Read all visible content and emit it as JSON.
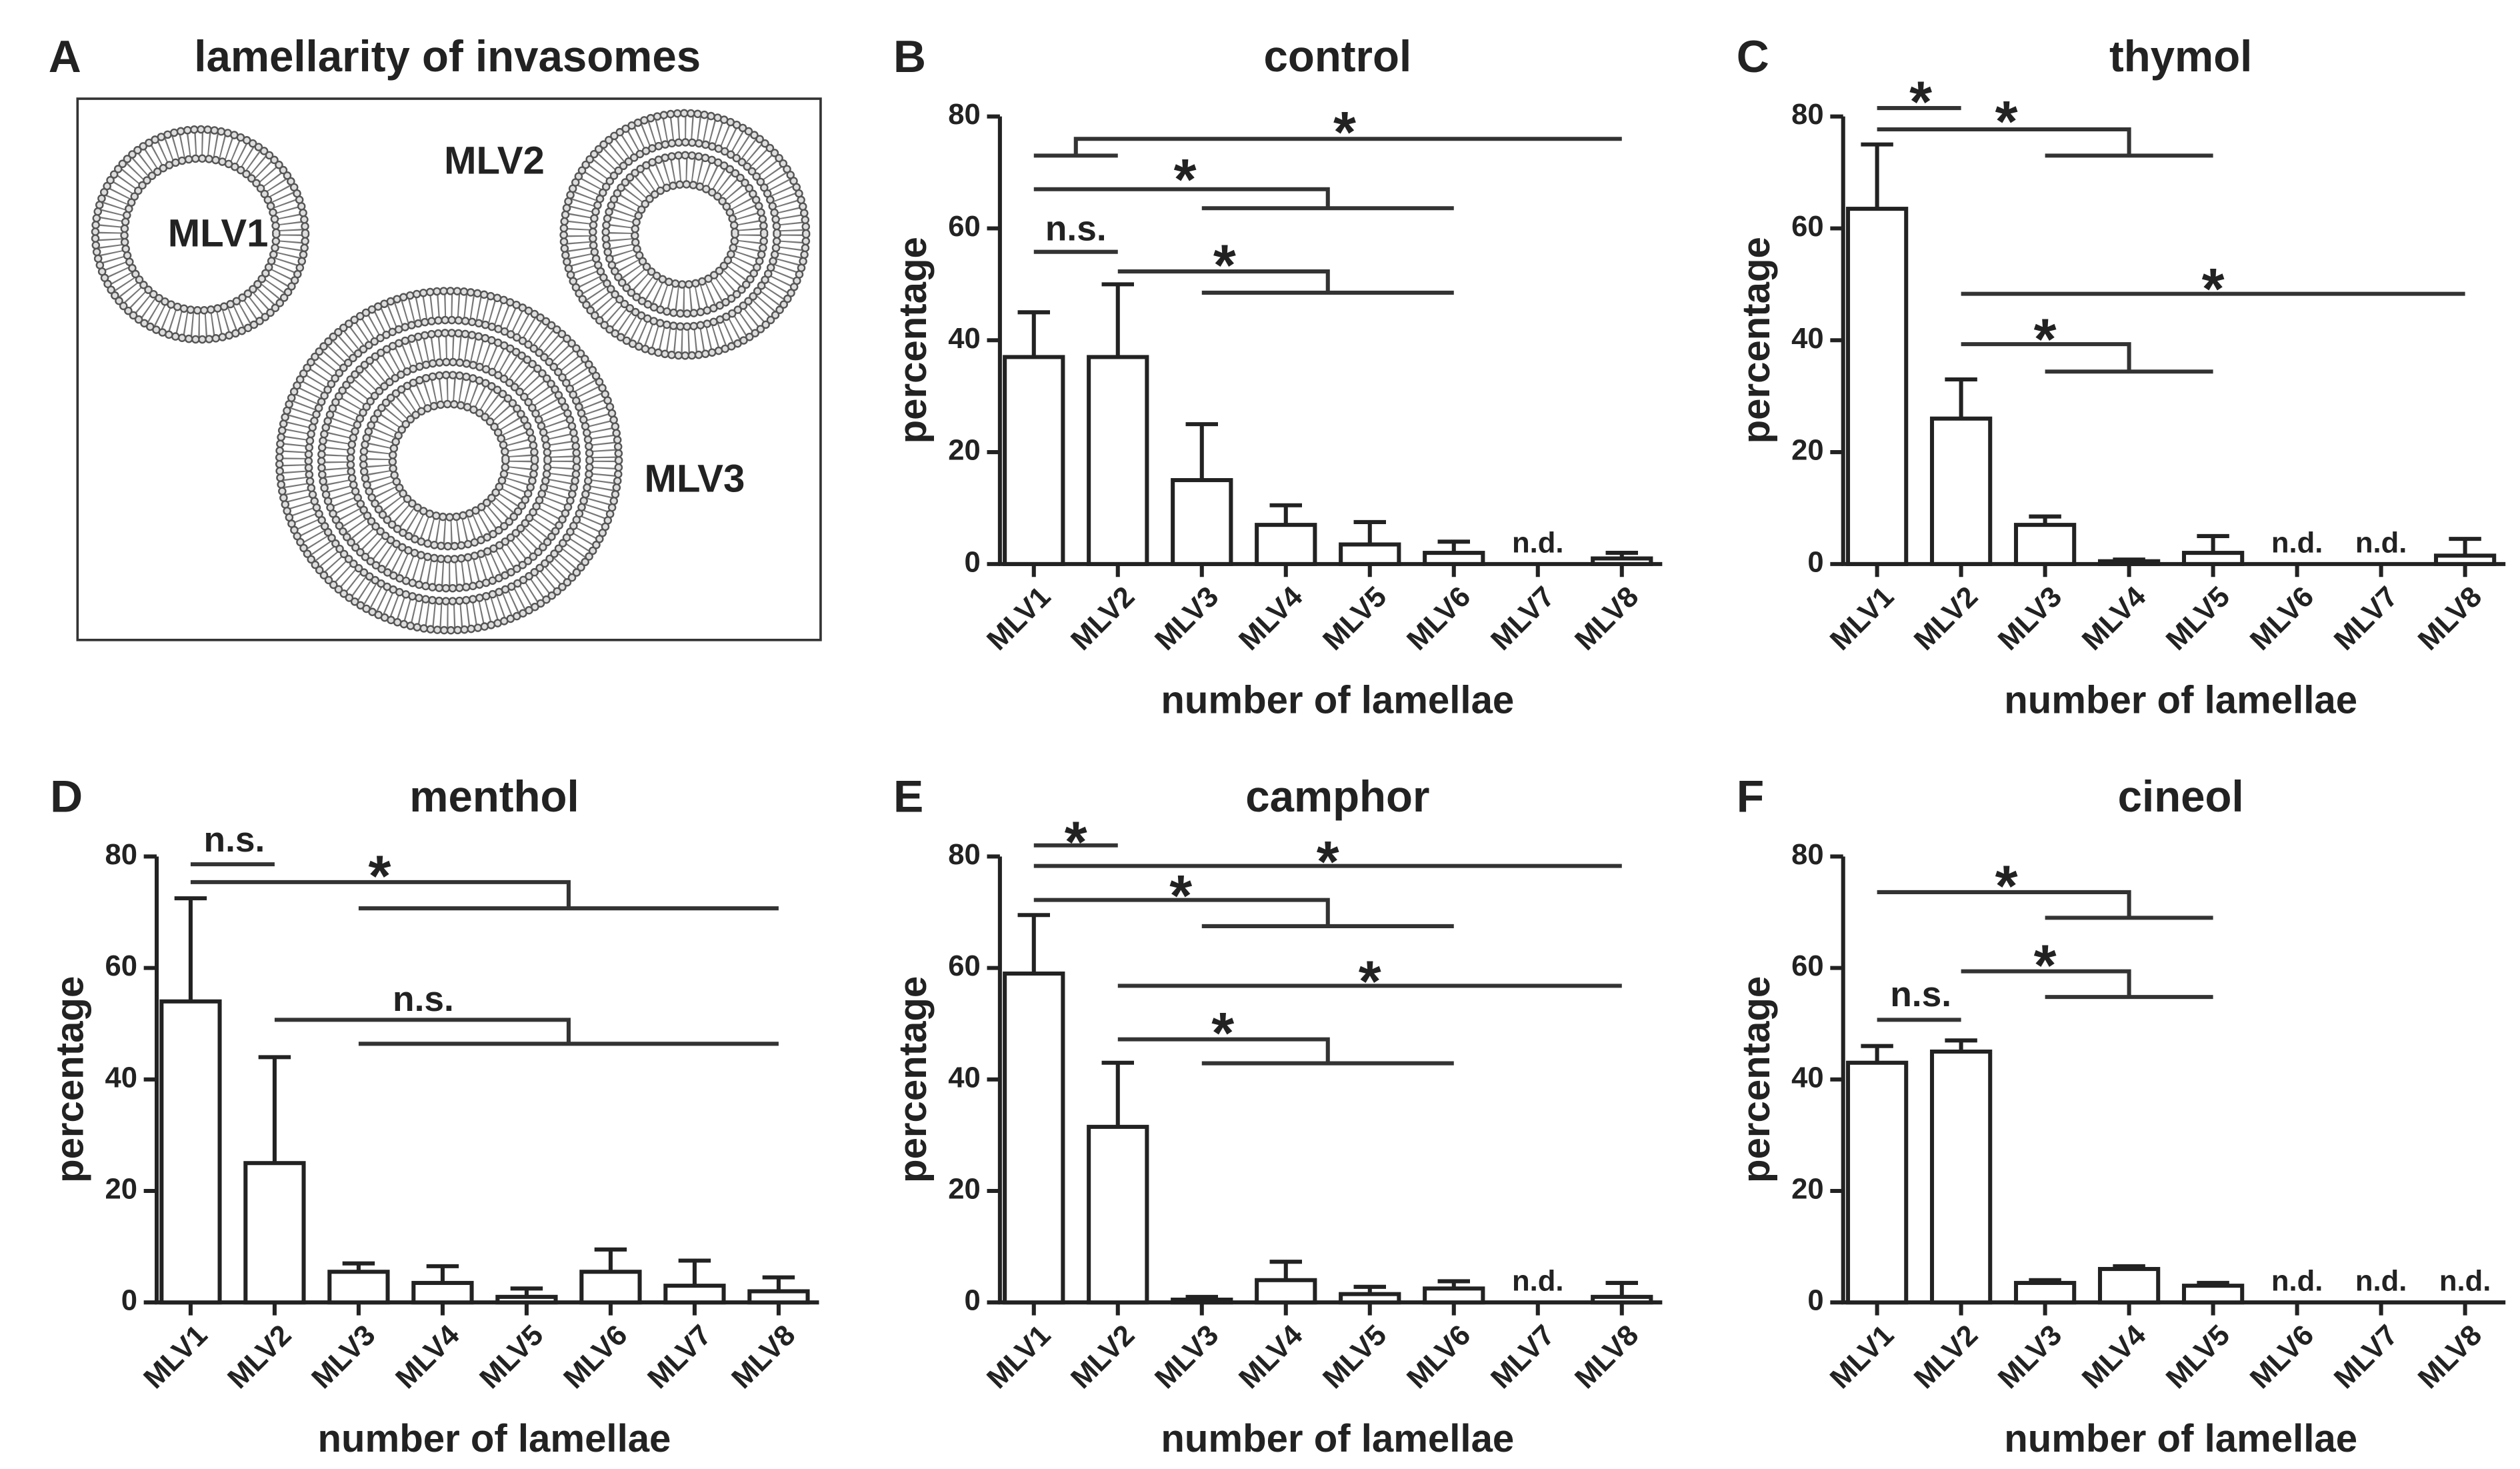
{
  "panel_a": {
    "letter": "A",
    "title": "lamellarity of invasomes",
    "labels": [
      "MLV1",
      "MLV2",
      "MLV3"
    ]
  },
  "chart_data": [
    {
      "type": "bar",
      "letter": "B",
      "title": "control",
      "xlabel": "number of lamellae",
      "ylabel": "percentage",
      "categories": [
        "MLV1",
        "MLV2",
        "MLV3",
        "MLV4",
        "MLV5",
        "MLV6",
        "MLV7",
        "MLV8"
      ],
      "values": [
        37,
        37,
        15,
        7,
        3.5,
        2,
        null,
        1
      ],
      "errors": [
        8,
        13,
        10,
        3.5,
        4,
        2,
        null,
        1
      ],
      "value_labels": [
        null,
        null,
        null,
        null,
        null,
        null,
        "n.d.",
        null
      ],
      "ylim": [
        0,
        80
      ],
      "yticks": [
        0,
        20,
        40,
        60,
        80
      ],
      "color": "#ffffff",
      "annotations": [
        "*",
        "*",
        "n.s.",
        "*"
      ]
    },
    {
      "type": "bar",
      "letter": "C",
      "title": "thymol",
      "xlabel": "number of lamellae",
      "ylabel": "percentage",
      "categories": [
        "MLV1",
        "MLV2",
        "MLV3",
        "MLV4",
        "MLV5",
        "MLV6",
        "MLV7",
        "MLV8"
      ],
      "values": [
        63.5,
        26,
        7,
        0.5,
        2,
        null,
        null,
        1.5
      ],
      "errors": [
        11.5,
        7,
        1.5,
        0.3,
        3,
        null,
        null,
        3
      ],
      "value_labels": [
        null,
        null,
        null,
        null,
        null,
        "n.d.",
        "n.d.",
        null
      ],
      "ylim": [
        0,
        80
      ],
      "yticks": [
        0,
        20,
        40,
        60,
        80
      ],
      "color": "#ffffff",
      "annotations": [
        "*",
        "*",
        "*",
        "*"
      ]
    },
    {
      "type": "bar",
      "letter": "D",
      "title": "menthol",
      "xlabel": "number of lamellae",
      "ylabel": "percentage",
      "categories": [
        "MLV1",
        "MLV2",
        "MLV3",
        "MLV4",
        "MLV5",
        "MLV6",
        "MLV7",
        "MLV8"
      ],
      "values": [
        54,
        25,
        5.5,
        3.5,
        1,
        5.5,
        3,
        2
      ],
      "errors": [
        18.5,
        19,
        1.5,
        3,
        1.5,
        4,
        4.5,
        2.5
      ],
      "ylim": [
        0,
        80
      ],
      "yticks": [
        0,
        20,
        40,
        60,
        80
      ],
      "color": "#ffffff",
      "annotations": [
        "n.s.",
        "*",
        "n.s."
      ]
    },
    {
      "type": "bar",
      "letter": "E",
      "title": "camphor",
      "xlabel": "number of lamellae",
      "ylabel": "percentage",
      "categories": [
        "MLV1",
        "MLV2",
        "MLV3",
        "MLV4",
        "MLV5",
        "MLV6",
        "MLV7",
        "MLV8"
      ],
      "values": [
        59,
        31.5,
        0.5,
        4,
        1.5,
        2.5,
        null,
        1
      ],
      "errors": [
        10.5,
        11.5,
        0.5,
        3.3,
        1.3,
        1.3,
        null,
        2.5
      ],
      "value_labels": [
        null,
        null,
        null,
        null,
        null,
        null,
        "n.d.",
        null
      ],
      "ylim": [
        0,
        80
      ],
      "yticks": [
        0,
        20,
        40,
        60,
        80
      ],
      "color": "#ffffff",
      "annotations": [
        "*",
        "*",
        "*",
        "*",
        "*"
      ]
    },
    {
      "type": "bar",
      "letter": "F",
      "title": "cineol",
      "xlabel": "number of lamellae",
      "ylabel": "percentage",
      "categories": [
        "MLV1",
        "MLV2",
        "MLV3",
        "MLV4",
        "MLV5",
        "MLV6",
        "MLV7",
        "MLV8"
      ],
      "values": [
        43,
        45,
        3.5,
        6,
        3,
        null,
        null,
        null
      ],
      "errors": [
        3,
        2,
        0.5,
        0.5,
        0.5,
        null,
        null,
        null
      ],
      "value_labels": [
        null,
        null,
        null,
        null,
        null,
        "n.d.",
        "n.d.",
        "n.d."
      ],
      "ylim": [
        0,
        80
      ],
      "yticks": [
        0,
        20,
        40,
        60,
        80
      ],
      "color": "#ffffff",
      "annotations": [
        "*",
        "*",
        "n.s."
      ]
    }
  ]
}
